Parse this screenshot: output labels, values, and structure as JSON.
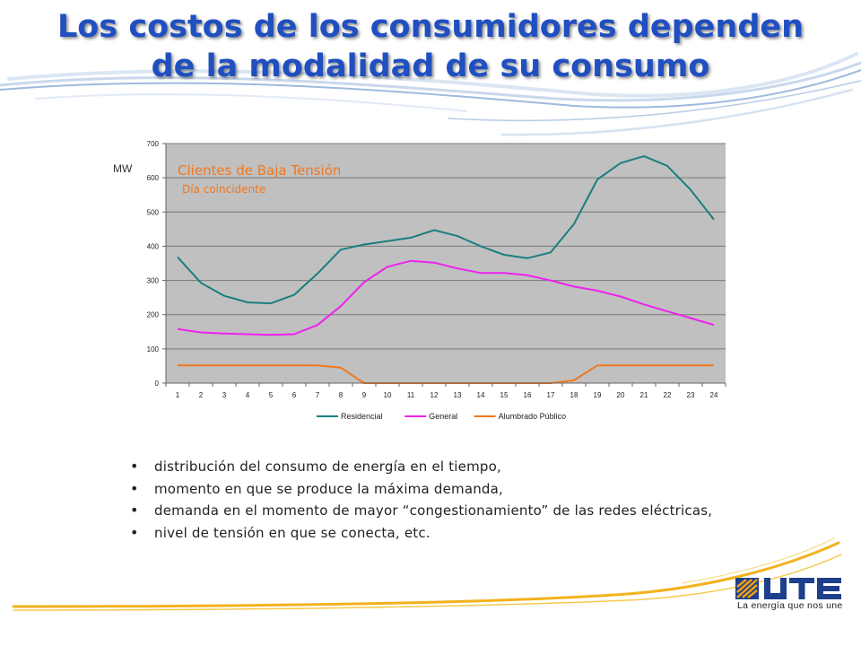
{
  "slide": {
    "title_line1": "Los costos de los consumidores dependen",
    "title_line2": "de la modalidad de su consumo",
    "bullets": [
      "distribución del consumo de energía en el tiempo,",
      "momento en que se produce la máxima demanda,",
      "demanda en el momento de mayor “congestionamiento”  de las redes eléctricas,",
      "nivel de tensión en que se conecta, etc."
    ]
  },
  "logo": {
    "brand": "UTE",
    "tagline": "La energía que nos une",
    "colors": {
      "blue": "#1e3f8c",
      "orange": "#f0a010"
    }
  },
  "chart_data": {
    "type": "line",
    "title": "Clientes de Baja Tensión",
    "subtitle": "Día coincidente",
    "xlabel": "",
    "ylabel": "MW",
    "ylim": [
      0,
      700
    ],
    "yticks": [
      0,
      100,
      200,
      300,
      400,
      500,
      600,
      700
    ],
    "grid": true,
    "legend_position": "bottom",
    "x": [
      1,
      2,
      3,
      4,
      5,
      6,
      7,
      8,
      9,
      10,
      11,
      12,
      13,
      14,
      15,
      16,
      17,
      18,
      19,
      20,
      21,
      22,
      23,
      24
    ],
    "series": [
      {
        "name": "Residencial",
        "color": "#1a7f7f",
        "values": [
          368,
          293,
          255,
          236,
          233,
          258,
          320,
          390,
          405,
          415,
          425,
          447,
          430,
          400,
          375,
          365,
          382,
          465,
          595,
          643,
          663,
          635,
          565,
          478
        ]
      },
      {
        "name": "General",
        "color": "#ee22ee",
        "values": [
          158,
          148,
          145,
          143,
          141,
          143,
          170,
          225,
          295,
          340,
          357,
          352,
          335,
          322,
          322,
          315,
          300,
          282,
          270,
          253,
          230,
          210,
          190,
          170
        ]
      },
      {
        "name": "Alumbrado Público",
        "color": "#f07820",
        "values": [
          52,
          52,
          52,
          52,
          52,
          52,
          52,
          45,
          0,
          0,
          0,
          0,
          0,
          0,
          0,
          0,
          0,
          8,
          52,
          52,
          52,
          52,
          52,
          52
        ]
      }
    ],
    "plot_background": "#c0c0c0"
  }
}
